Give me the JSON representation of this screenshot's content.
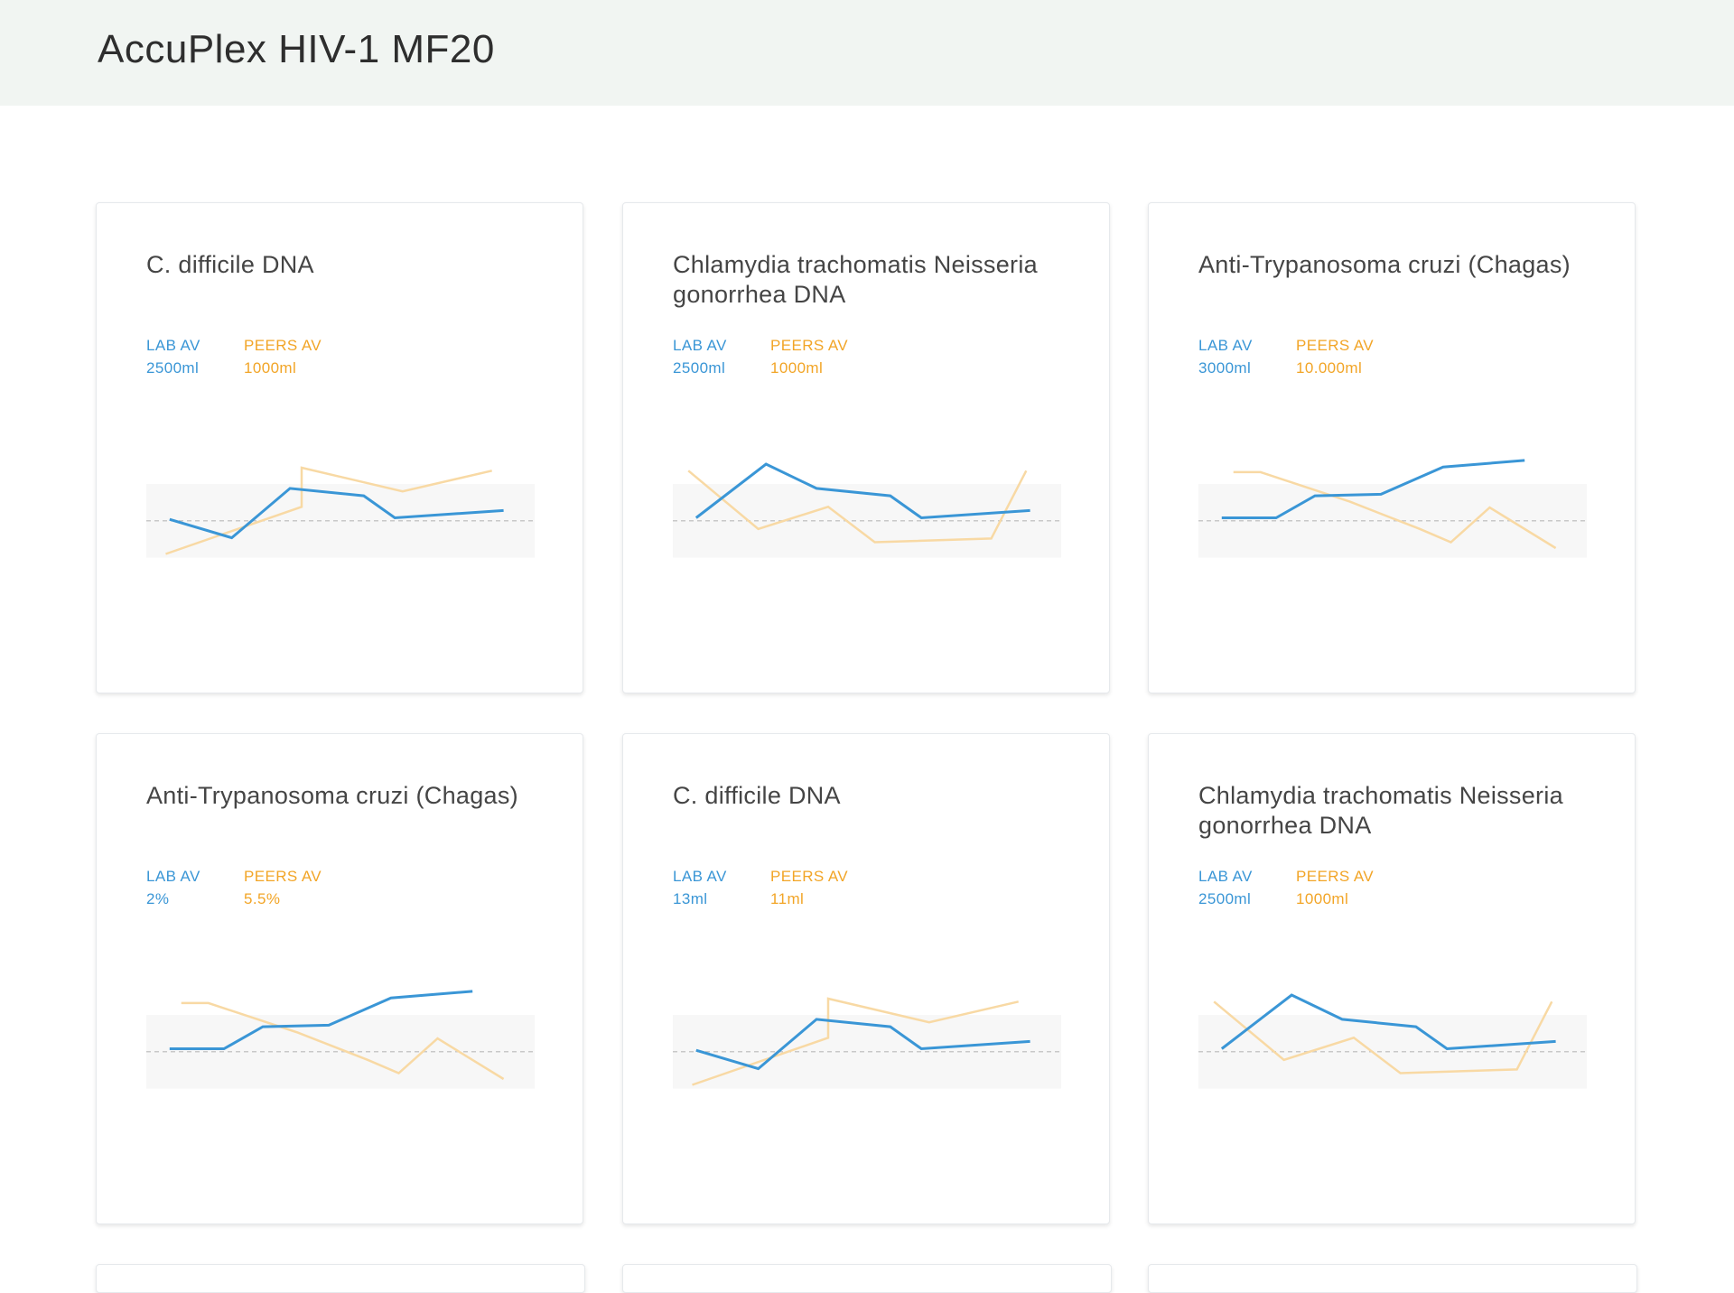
{
  "header": {
    "title": "AccuPlex HIV-1 MF20"
  },
  "colors": {
    "lab": "#3a96d6",
    "peers": "#f8d9a4",
    "peers_text": "#f2a527",
    "band": "#f7f7f7",
    "dashed": "#c8c8c8"
  },
  "cards": [
    {
      "title": "C. difficile DNA",
      "lab_label": "LAB AV",
      "lab_value": "2500ml",
      "peers_label": "PEERS AV",
      "peers_value": "1000ml",
      "chart_data": {
        "type": "line",
        "series": [
          {
            "name": "LAB AV",
            "x": [
              0.06,
              0.22,
              0.37,
              0.56,
              0.64,
              0.92
            ],
            "y": [
              0.52,
              0.27,
              0.94,
              0.84,
              0.54,
              0.64
            ]
          },
          {
            "name": "PEERS AV",
            "x": [
              0.05,
              0.4,
              0.4,
              0.66,
              0.89
            ],
            "y": [
              0.05,
              0.69,
              1.22,
              0.9,
              1.18
            ]
          }
        ]
      }
    },
    {
      "title": "Chlamydia trachomatis Neisseria gonorrhea DNA",
      "lab_label": "LAB AV",
      "lab_value": "2500ml",
      "peers_label": "PEERS AV",
      "peers_value": "1000ml",
      "chart_data": {
        "type": "line",
        "series": [
          {
            "name": "LAB AV",
            "x": [
              0.06,
              0.24,
              0.37,
              0.56,
              0.64,
              0.92
            ],
            "y": [
              0.54,
              1.27,
              0.94,
              0.84,
              0.54,
              0.64
            ]
          },
          {
            "name": "PEERS AV",
            "x": [
              0.04,
              0.22,
              0.4,
              0.52,
              0.82,
              0.91
            ],
            "y": [
              1.18,
              0.39,
              0.69,
              0.21,
              0.26,
              1.18
            ]
          }
        ]
      }
    },
    {
      "title": "Anti-Trypanosoma cruzi (Chagas)",
      "lab_label": "LAB AV",
      "lab_value": "3000ml",
      "peers_label": "PEERS AV",
      "peers_value": "10.000ml",
      "chart_data": {
        "type": "line",
        "series": [
          {
            "name": "LAB AV",
            "x": [
              0.06,
              0.2,
              0.3,
              0.47,
              0.63,
              0.84
            ],
            "y": [
              0.54,
              0.54,
              0.84,
              0.86,
              1.23,
              1.32
            ]
          },
          {
            "name": "PEERS AV",
            "x": [
              0.09,
              0.16,
              0.39,
              0.57,
              0.65,
              0.75,
              0.92
            ],
            "y": [
              1.16,
              1.16,
              0.76,
              0.39,
              0.21,
              0.68,
              0.13
            ]
          }
        ]
      }
    },
    {
      "title": "Anti-Trypanosoma cruzi (Chagas)",
      "lab_label": "LAB AV",
      "lab_value": "2%",
      "peers_label": "PEERS AV",
      "peers_value": "5.5%",
      "chart_data": {
        "type": "line",
        "series": [
          {
            "name": "LAB AV",
            "x": [
              0.06,
              0.2,
              0.3,
              0.47,
              0.63,
              0.84
            ],
            "y": [
              0.54,
              0.54,
              0.84,
              0.86,
              1.23,
              1.32
            ]
          },
          {
            "name": "PEERS AV",
            "x": [
              0.09,
              0.16,
              0.39,
              0.57,
              0.65,
              0.75,
              0.92
            ],
            "y": [
              1.16,
              1.16,
              0.76,
              0.39,
              0.21,
              0.68,
              0.13
            ]
          }
        ]
      }
    },
    {
      "title": "C. difficile DNA",
      "lab_label": "LAB AV",
      "lab_value": "13ml",
      "peers_label": "PEERS AV",
      "peers_value": "11ml",
      "chart_data": {
        "type": "line",
        "series": [
          {
            "name": "LAB AV",
            "x": [
              0.06,
              0.22,
              0.37,
              0.56,
              0.64,
              0.92
            ],
            "y": [
              0.52,
              0.27,
              0.94,
              0.84,
              0.54,
              0.64
            ]
          },
          {
            "name": "PEERS AV",
            "x": [
              0.05,
              0.4,
              0.4,
              0.66,
              0.89
            ],
            "y": [
              0.05,
              0.69,
              1.22,
              0.9,
              1.18
            ]
          }
        ]
      }
    },
    {
      "title": "Chlamydia trachomatis Neisseria gonorrhea DNA",
      "lab_label": "LAB AV",
      "lab_value": "2500ml",
      "peers_label": "PEERS AV",
      "peers_value": "1000ml",
      "chart_data": {
        "type": "line",
        "series": [
          {
            "name": "LAB AV",
            "x": [
              0.06,
              0.24,
              0.37,
              0.56,
              0.64,
              0.92
            ],
            "y": [
              0.54,
              1.27,
              0.94,
              0.84,
              0.54,
              0.64
            ]
          },
          {
            "name": "PEERS AV",
            "x": [
              0.04,
              0.22,
              0.4,
              0.52,
              0.82,
              0.91
            ],
            "y": [
              1.18,
              0.39,
              0.69,
              0.21,
              0.26,
              1.18
            ]
          }
        ]
      }
    }
  ]
}
